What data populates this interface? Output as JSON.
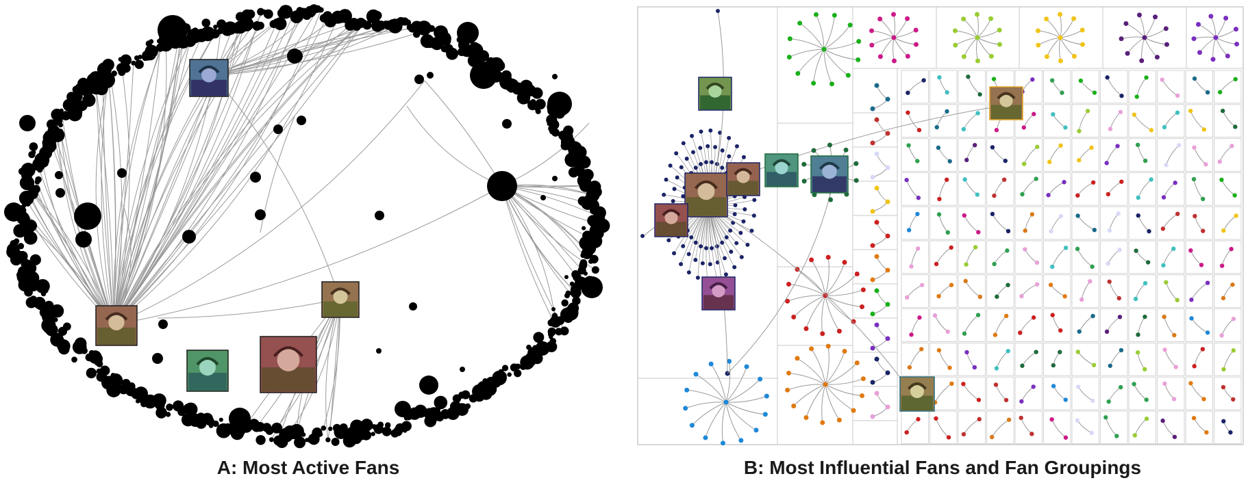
{
  "panels": {
    "a": {
      "caption": "A: Most Active Fans"
    },
    "b": {
      "caption": "B: Most Influential Fans and Fan Groupings"
    }
  },
  "colors": {
    "node_a": "#000000",
    "edge": "#9a9a9a",
    "grid_line": "#c8c8c8",
    "panel_border": "#b0b0b0",
    "big_group": "#1b2466",
    "group_palette": [
      "#1ab01a",
      "#cc1a88",
      "#99cc33",
      "#f0c419",
      "#5a1f7a",
      "#7a2fc0",
      "#1a6a8a",
      "#d97a1a",
      "#cc2020",
      "#1e88d8",
      "#1b2466",
      "#c03030",
      "#1e6a3a",
      "#e07a10",
      "#30a050",
      "#e8a0d8",
      "#d8d8f8",
      "#40c0c0"
    ]
  },
  "icons": {
    "avatar": "profile-photo-icon"
  }
}
